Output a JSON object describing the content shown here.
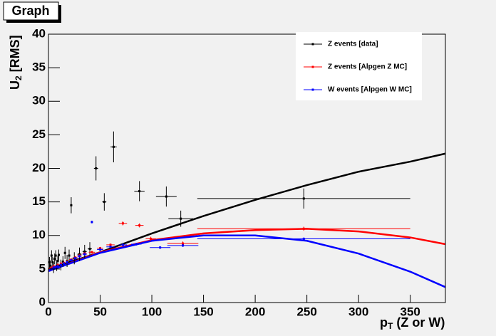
{
  "chart_data": {
    "type": "scatter",
    "title": "Graph",
    "xlabel_parts": [
      "p",
      "T",
      " (Z or W)"
    ],
    "ylabel_parts": [
      "U",
      "2",
      " [RMS]"
    ],
    "xlim": [
      0,
      384
    ],
    "ylim": [
      0,
      40
    ],
    "xticks": [
      0,
      50,
      100,
      150,
      200,
      250,
      300,
      350
    ],
    "yticks": [
      0,
      5,
      10,
      15,
      20,
      25,
      30,
      35,
      40
    ],
    "series": [
      {
        "name": "Z events [data]",
        "color": "#000000",
        "x": [
          1,
          2,
          3,
          4,
          5,
          6,
          7,
          8,
          9,
          10,
          12,
          14,
          16,
          18,
          20,
          22,
          25,
          30,
          35,
          40,
          46,
          54,
          63,
          88,
          114,
          128,
          247
        ],
        "values": [
          6,
          5.5,
          7,
          6,
          5.2,
          6.5,
          7,
          5.5,
          6.2,
          7.1,
          5.6,
          6.1,
          7.4,
          6.2,
          7,
          14.5,
          6.6,
          7.2,
          7.6,
          8,
          20,
          15,
          23.2,
          16.6,
          15.8,
          12.5,
          15.5
        ],
        "xerr": [
          0.5,
          0.5,
          0.5,
          0.5,
          0.5,
          0.5,
          0.5,
          0.5,
          0.5,
          0.5,
          1,
          1,
          1,
          1,
          1,
          1,
          2,
          2,
          2,
          2,
          2,
          2,
          3,
          5,
          10,
          12,
          103
        ],
        "yerr": [
          0.8,
          0.8,
          0.8,
          0.8,
          0.8,
          0.8,
          0.8,
          0.8,
          0.8,
          0.8,
          0.8,
          0.8,
          0.9,
          0.9,
          0.9,
          1.2,
          0.9,
          1,
          1,
          1,
          1.8,
          1.3,
          2.3,
          1.5,
          1.5,
          1.2,
          1.5
        ]
      },
      {
        "name": "Z events [Alpgen Z MC]",
        "color": "#ff0000",
        "x": [
          1,
          3,
          5,
          7,
          9,
          12,
          15,
          18,
          22,
          26,
          30,
          35,
          42,
          50,
          60,
          72,
          88,
          99,
          130,
          247
        ],
        "values": [
          5,
          5.2,
          5.4,
          5.3,
          5.6,
          5.8,
          5.9,
          6.1,
          6.4,
          6.7,
          7,
          7.3,
          7.5,
          8.1,
          8.6,
          11.8,
          11.5,
          9.5,
          8.8,
          11
        ],
        "xerr": [
          0.5,
          0.5,
          0.5,
          0.5,
          0.5,
          1,
          1,
          1,
          2,
          2,
          2,
          2,
          3,
          3,
          4,
          4,
          4,
          5,
          15,
          103
        ],
        "yerr": [
          0.2,
          0.2,
          0.2,
          0.2,
          0.2,
          0.2,
          0.2,
          0.2,
          0.2,
          0.2,
          0.2,
          0.2,
          0.2,
          0.2,
          0.2,
          0.3,
          0.3,
          0.3,
          0.3,
          0.3
        ]
      },
      {
        "name": "W events [Alpgen W MC]",
        "color": "#0000ff",
        "x": [
          1,
          3,
          5,
          7,
          9,
          12,
          15,
          18,
          22,
          26,
          30,
          35,
          42,
          50,
          60,
          72,
          85,
          108,
          130,
          247
        ],
        "values": [
          4.8,
          5,
          5.2,
          5.3,
          5.4,
          5.6,
          5.8,
          6,
          6.3,
          6.6,
          6.9,
          7.2,
          12,
          7.9,
          8.3,
          8.6,
          8.7,
          8.2,
          8.5,
          9.5
        ],
        "xerr": [
          0.5,
          0.5,
          0.5,
          0.5,
          0.5,
          1,
          1,
          1,
          2,
          2,
          2,
          2,
          1,
          3,
          4,
          4,
          5,
          10,
          15,
          103
        ],
        "yerr": [
          0.2,
          0.2,
          0.2,
          0.2,
          0.2,
          0.2,
          0.2,
          0.2,
          0.2,
          0.2,
          0.2,
          0.2,
          0.2,
          0.2,
          0.2,
          0.2,
          0.2,
          0.2,
          0.2,
          0.2
        ]
      }
    ],
    "fits": [
      {
        "color": "#000000",
        "x": [
          0,
          50,
          100,
          150,
          200,
          250,
          300,
          350,
          384
        ],
        "values": [
          5,
          7.5,
          10.3,
          12.9,
          15.3,
          17.5,
          19.5,
          21,
          22.2
        ]
      },
      {
        "color": "#ff0000",
        "x": [
          0,
          50,
          100,
          150,
          200,
          250,
          300,
          350,
          384
        ],
        "values": [
          4.7,
          7.5,
          9.3,
          10.3,
          10.8,
          11,
          10.6,
          9.7,
          8.7
        ]
      },
      {
        "color": "#0000ff",
        "x": [
          0,
          50,
          100,
          150,
          200,
          250,
          300,
          350,
          384
        ],
        "values": [
          4.7,
          7.4,
          9.2,
          10,
          10,
          9.2,
          7.3,
          4.6,
          2.3
        ]
      }
    ]
  }
}
